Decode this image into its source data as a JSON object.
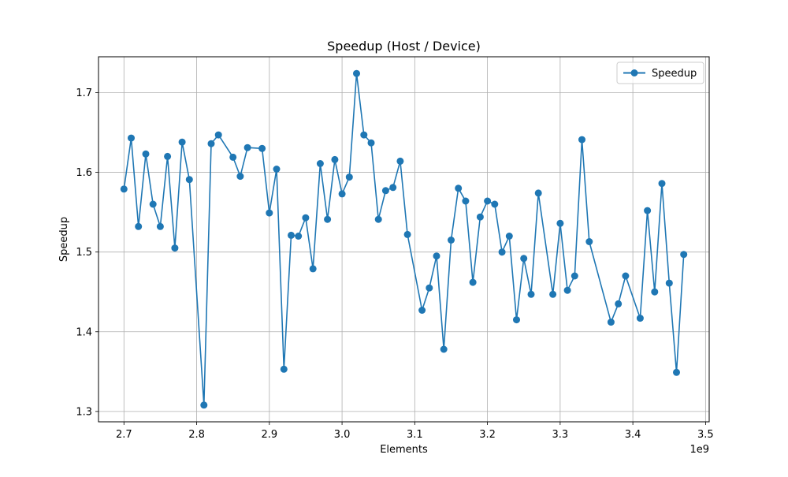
{
  "chart_data": {
    "type": "line",
    "title": "Speedup (Host / Device)",
    "xlabel": "Elements",
    "ylabel": "Speedup",
    "x_offset_label": "1e9",
    "xlim": [
      2.665,
      3.505
    ],
    "ylim": [
      1.287,
      1.745
    ],
    "x_ticks": [
      2.7,
      2.8,
      2.9,
      3.0,
      3.1,
      3.2,
      3.3,
      3.4,
      3.5
    ],
    "x_tick_labels": [
      "2.7",
      "2.8",
      "2.9",
      "3.0",
      "3.1",
      "3.2",
      "3.3",
      "3.4",
      "3.5"
    ],
    "y_ticks": [
      1.3,
      1.4,
      1.5,
      1.6,
      1.7
    ],
    "y_tick_labels": [
      "1.3",
      "1.4",
      "1.5",
      "1.6",
      "1.7"
    ],
    "grid": true,
    "legend_position": "top-right",
    "series": [
      {
        "name": "Speedup",
        "color": "#1f77b4",
        "marker": "circle",
        "points": [
          [
            2.7,
            1.579
          ],
          [
            2.71,
            1.643
          ],
          [
            2.72,
            1.532
          ],
          [
            2.73,
            1.623
          ],
          [
            2.74,
            1.56
          ],
          [
            2.75,
            1.532
          ],
          [
            2.76,
            1.62
          ],
          [
            2.77,
            1.505
          ],
          [
            2.78,
            1.638
          ],
          [
            2.79,
            1.591
          ],
          [
            2.81,
            1.308
          ],
          [
            2.82,
            1.636
          ],
          [
            2.83,
            1.647
          ],
          [
            2.85,
            1.619
          ],
          [
            2.86,
            1.595
          ],
          [
            2.87,
            1.631
          ],
          [
            2.89,
            1.63
          ],
          [
            2.9,
            1.549
          ],
          [
            2.91,
            1.604
          ],
          [
            2.92,
            1.353
          ],
          [
            2.93,
            1.521
          ],
          [
            2.94,
            1.52
          ],
          [
            2.95,
            1.543
          ],
          [
            2.96,
            1.479
          ],
          [
            2.97,
            1.611
          ],
          [
            2.98,
            1.541
          ],
          [
            2.99,
            1.616
          ],
          [
            3.0,
            1.573
          ],
          [
            3.01,
            1.594
          ],
          [
            3.02,
            1.724
          ],
          [
            3.03,
            1.647
          ],
          [
            3.04,
            1.637
          ],
          [
            3.05,
            1.541
          ],
          [
            3.06,
            1.577
          ],
          [
            3.07,
            1.581
          ],
          [
            3.08,
            1.614
          ],
          [
            3.09,
            1.522
          ],
          [
            3.11,
            1.427
          ],
          [
            3.12,
            1.455
          ],
          [
            3.13,
            1.495
          ],
          [
            3.14,
            1.378
          ],
          [
            3.15,
            1.515
          ],
          [
            3.16,
            1.58
          ],
          [
            3.17,
            1.564
          ],
          [
            3.18,
            1.462
          ],
          [
            3.19,
            1.544
          ],
          [
            3.2,
            1.564
          ],
          [
            3.21,
            1.56
          ],
          [
            3.22,
            1.5
          ],
          [
            3.23,
            1.52
          ],
          [
            3.24,
            1.415
          ],
          [
            3.25,
            1.492
          ],
          [
            3.26,
            1.447
          ],
          [
            3.27,
            1.574
          ],
          [
            3.29,
            1.447
          ],
          [
            3.3,
            1.536
          ],
          [
            3.31,
            1.452
          ],
          [
            3.32,
            1.47
          ],
          [
            3.33,
            1.641
          ],
          [
            3.34,
            1.513
          ],
          [
            3.37,
            1.412
          ],
          [
            3.38,
            1.435
          ],
          [
            3.39,
            1.47
          ],
          [
            3.41,
            1.417
          ],
          [
            3.42,
            1.552
          ],
          [
            3.43,
            1.45
          ],
          [
            3.44,
            1.586
          ],
          [
            3.45,
            1.461
          ],
          [
            3.46,
            1.349
          ],
          [
            3.47,
            1.497
          ]
        ]
      }
    ]
  }
}
